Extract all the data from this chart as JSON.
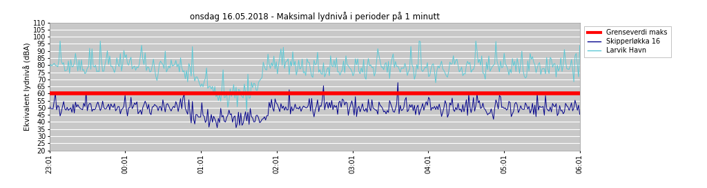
{
  "title": "onsdag 16.05.2018 - Maksimal lydnivå i perioder på 1 minutt",
  "ylabel": "Ekvivalent lydnivå (dBA)",
  "ylim": [
    20,
    110
  ],
  "yticks": [
    20,
    25,
    30,
    35,
    40,
    45,
    50,
    55,
    60,
    65,
    70,
    75,
    80,
    85,
    90,
    95,
    100,
    105,
    110
  ],
  "xtick_labels": [
    "23:01",
    "00:01",
    "01:01",
    "02:01",
    "03:01",
    "04:01",
    "05:01",
    "06:01"
  ],
  "n_points": 450,
  "grenseverdi": 60,
  "grenseverdi_color": "#ff0000",
  "grenseverdi_linewidth": 4,
  "skipperløkka_color": "#00008b",
  "larvik_color": "#5bc8d5",
  "line_linewidth": 0.7,
  "background_color": "#ffffff",
  "plot_bg_color": "#c8c8c8",
  "grid_color": "#ffffff",
  "title_fontsize": 8.5,
  "ylabel_fontsize": 7.5,
  "tick_fontsize": 7,
  "legend_labels": [
    "Grenseverdi maks",
    "Skipperløkka 16",
    "Larvik Havn"
  ],
  "legend_colors": [
    "#ff0000",
    "#00008b",
    "#5bc8d5"
  ],
  "figsize": [
    10.24,
    2.72
  ],
  "dpi": 100,
  "seed": 42
}
